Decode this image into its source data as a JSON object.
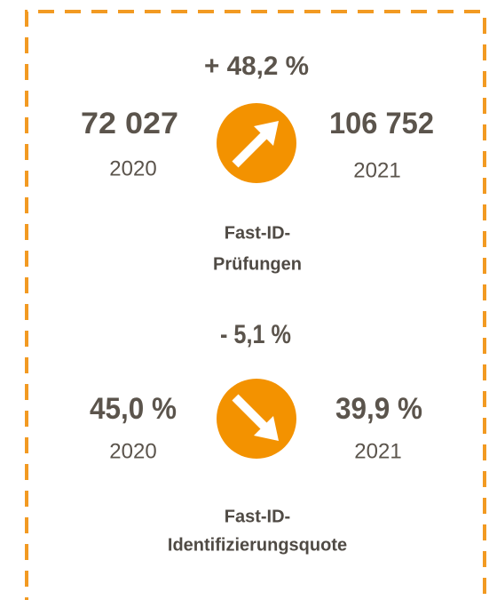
{
  "blocks": [
    {
      "change": "+ 48,2 %",
      "from_value": "72 027",
      "from_year": "2020",
      "to_value": "106 752",
      "to_year": "2021",
      "label": [
        "Fast-ID-",
        "Prüfungen"
      ]
    },
    {
      "change": "- 5,1 %",
      "from_value": "45,0 %",
      "from_year": "2020",
      "to_value": "39,9 %",
      "to_year": "2021",
      "label": [
        "Fast-ID-",
        "Identifizierungsquote"
      ]
    }
  ]
}
